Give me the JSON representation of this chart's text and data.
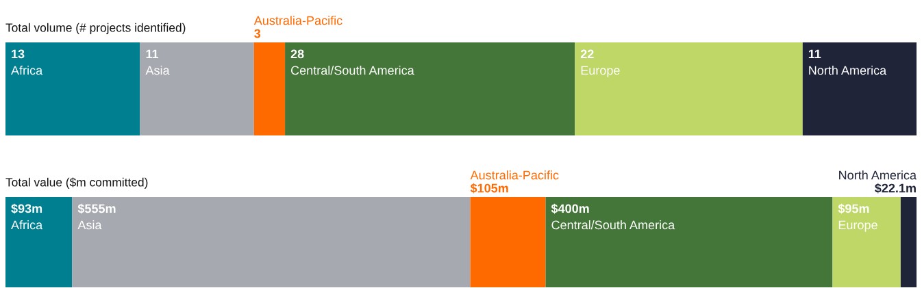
{
  "chart_data": [
    {
      "type": "bar",
      "orientation": "horizontal",
      "stacked": true,
      "title": "Total volume (# projects identified)",
      "categories": [
        null
      ],
      "data_labels": true,
      "series": [
        {
          "name": "Africa",
          "color": "#007f91",
          "values": [
            13
          ]
        },
        {
          "name": "Asia",
          "color": "#a7a9b0",
          "values": [
            11
          ]
        },
        {
          "name": "Australia-Pacific",
          "color": "#ff6a00",
          "values": [
            3
          ]
        },
        {
          "name": "Central/South America",
          "color": "#437638",
          "values": [
            28
          ]
        },
        {
          "name": "Europe",
          "color": "#bfd766",
          "values": [
            22
          ]
        },
        {
          "name": "North America",
          "color": "#1f2439",
          "values": [
            11
          ]
        }
      ]
    },
    {
      "type": "bar",
      "orientation": "horizontal",
      "stacked": true,
      "title": "Total value ($m committed)",
      "categories": [
        null
      ],
      "series": [
        {
          "name": "Africa",
          "color": "#007f91",
          "values": [
            93
          ],
          "value_labels": [
            "$93m"
          ]
        },
        {
          "name": "Asia",
          "color": "#a7a9b0",
          "values": [
            555
          ],
          "value_labels": [
            "$555m"
          ]
        },
        {
          "name": "Australia-Pacific",
          "color": "#ff6a00",
          "values": [
            105
          ],
          "value_labels": [
            "$105m"
          ]
        },
        {
          "name": "Central/South America",
          "color": "#437638",
          "values": [
            400
          ],
          "value_labels": [
            "$400m"
          ]
        },
        {
          "name": "Europe",
          "color": "#bfd766",
          "values": [
            95
          ],
          "value_labels": [
            "$95m"
          ]
        },
        {
          "name": "North America",
          "color": "#1f2439",
          "values": [
            22.1
          ],
          "value_labels": [
            "$22.1m"
          ]
        }
      ]
    }
  ]
}
